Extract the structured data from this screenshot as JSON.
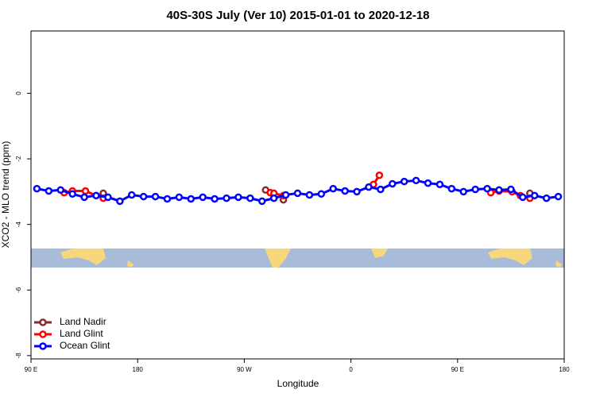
{
  "chart_data": {
    "type": "line",
    "title": "40S-30S July (Ver 10)   2015-01-01 to 2020-12-18",
    "x_label": "Longitude",
    "y_label": "XCO2 - MLO trend (ppm)",
    "xlim": [
      90,
      540
    ],
    "ylim": [
      -8.1,
      1.9
    ],
    "xticks": [
      {
        "value": 90,
        "label": "90 E"
      },
      {
        "value": 180,
        "label": "180"
      },
      {
        "value": 270,
        "label": "90 W"
      },
      {
        "value": 360,
        "label": "0"
      },
      {
        "value": 450,
        "label": "90 E"
      },
      {
        "value": 540,
        "label": "180"
      }
    ],
    "yticks": [
      0,
      -2,
      -4,
      -6,
      -8
    ],
    "legend": "bottom-left",
    "series": [
      {
        "name": "Land Nadir",
        "color": "#8b2a2a",
        "x": [
          151,
          220,
          288,
          296,
          303,
          400,
          511
        ],
        "values": [
          -3.05,
          null,
          -2.95,
          null,
          -3.25,
          null,
          -3.05
        ]
      },
      {
        "name": "Land Glint",
        "color": "#ff0000",
        "x": [
          118,
          125,
          136,
          145,
          151,
          220,
          292,
          295,
          303,
          340,
          379,
          384,
          430,
          478,
          485,
          496,
          503,
          511
        ],
        "values": [
          -3.03,
          -2.98,
          -2.98,
          -3.12,
          -3.2,
          null,
          -3.03,
          -3.05,
          -3.12,
          null,
          -2.78,
          -2.5,
          null,
          -3.03,
          -2.98,
          -3.0,
          -3.12,
          -3.2
        ]
      },
      {
        "name": "Ocean Glint",
        "color": "#0000ff",
        "x": [
          95,
          105,
          115,
          125,
          135,
          145,
          155,
          165,
          175,
          185,
          195,
          205,
          215,
          225,
          235,
          245,
          255,
          265,
          275,
          285,
          295,
          305,
          315,
          325,
          335,
          345,
          355,
          365,
          375,
          385,
          395,
          405,
          415,
          425,
          435,
          445,
          455,
          465,
          475,
          485,
          495,
          505,
          515,
          525,
          535
        ],
        "values": [
          -2.91,
          -2.98,
          -2.95,
          -3.07,
          -3.17,
          -3.12,
          -3.17,
          -3.29,
          -3.1,
          -3.15,
          -3.15,
          -3.22,
          -3.17,
          -3.22,
          -3.17,
          -3.22,
          -3.2,
          -3.17,
          -3.2,
          -3.29,
          -3.2,
          -3.1,
          -3.05,
          -3.1,
          -3.07,
          -2.91,
          -2.98,
          -3.0,
          -2.86,
          -2.93,
          -2.76,
          -2.69,
          -2.66,
          -2.74,
          -2.78,
          -2.91,
          -3.0,
          -2.93,
          -2.91,
          -2.95,
          -2.93,
          -3.17,
          -3.12,
          -3.2,
          -3.15
        ]
      }
    ]
  }
}
